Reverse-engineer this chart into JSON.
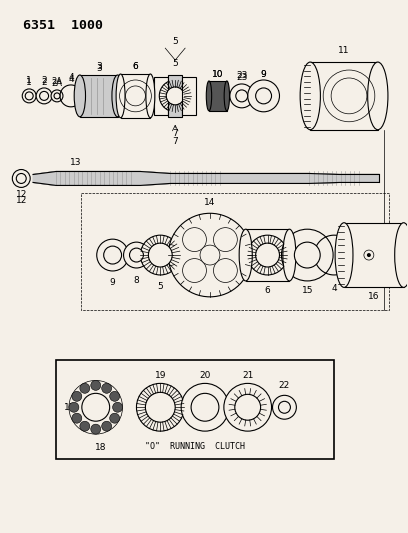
{
  "title": "6351  1000",
  "bg_color": "#f5f0e8",
  "fg_color": "#000000",
  "inset_label": "\"O\"  RUNNING  CLUTCH"
}
